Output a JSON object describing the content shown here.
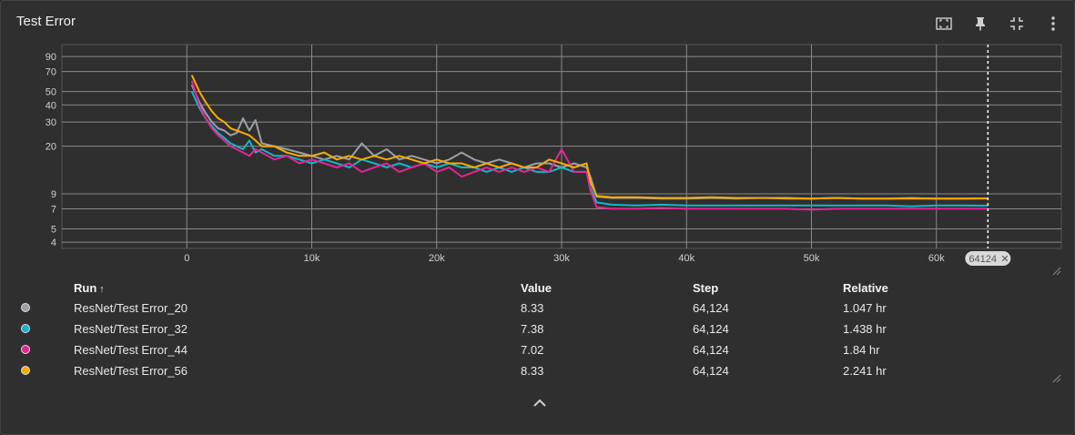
{
  "card": {
    "title": "Test Error"
  },
  "toolbar": [
    {
      "name": "fit-to-data-icon"
    },
    {
      "name": "pin-icon"
    },
    {
      "name": "collapse-card-icon"
    },
    {
      "name": "more-vert-icon"
    }
  ],
  "colors": {
    "background": "#2f2f2f",
    "grid": "#8a8a8a",
    "axis_text": "#d0d0d0"
  },
  "step_marker": {
    "step": 64124,
    "label": "64124"
  },
  "chart_data": {
    "type": "line",
    "title": "Test Error",
    "xlabel": "",
    "ylabel": "",
    "x_ticks": [
      0,
      10000,
      20000,
      30000,
      40000,
      50000,
      60000
    ],
    "x_tick_labels": [
      "0",
      "10k",
      "20k",
      "30k",
      "40k",
      "50k",
      "60k"
    ],
    "y_ticks": [
      4,
      5,
      7,
      9,
      20,
      30,
      40,
      50,
      70,
      90
    ],
    "y_tick_labels": [
      "4",
      "5",
      "7",
      "9",
      "20",
      "30",
      "40",
      "50",
      "70",
      "90"
    ],
    "y_scale": "log",
    "xlim": [
      -10000,
      70000
    ],
    "ylim": [
      3.6,
      110
    ],
    "grid": true,
    "series": [
      {
        "name": "ResNet/Test Error_20",
        "color": "#9aa0a6",
        "points": [
          [
            400,
            56
          ],
          [
            1000,
            42
          ],
          [
            1500,
            35
          ],
          [
            2000,
            30
          ],
          [
            2500,
            27
          ],
          [
            3000,
            26
          ],
          [
            3500,
            24
          ],
          [
            4000,
            25
          ],
          [
            4500,
            32
          ],
          [
            5000,
            26
          ],
          [
            5500,
            31
          ],
          [
            6000,
            21
          ],
          [
            7000,
            20
          ],
          [
            8000,
            19
          ],
          [
            9000,
            18
          ],
          [
            10000,
            17
          ],
          [
            11000,
            16
          ],
          [
            12000,
            17
          ],
          [
            13000,
            16
          ],
          [
            14000,
            21
          ],
          [
            15000,
            17
          ],
          [
            16000,
            19
          ],
          [
            17000,
            16
          ],
          [
            18000,
            17
          ],
          [
            19000,
            16
          ],
          [
            20000,
            15
          ],
          [
            21000,
            16
          ],
          [
            22000,
            18
          ],
          [
            23000,
            16
          ],
          [
            24000,
            15
          ],
          [
            25000,
            16
          ],
          [
            26000,
            15
          ],
          [
            27000,
            14
          ],
          [
            28000,
            15
          ],
          [
            29000,
            15
          ],
          [
            30000,
            14
          ],
          [
            31000,
            15
          ],
          [
            32000,
            14
          ],
          [
            32300,
            12
          ],
          [
            32800,
            8.6
          ],
          [
            34000,
            8.4
          ],
          [
            36000,
            8.4
          ],
          [
            38000,
            8.3
          ],
          [
            40000,
            8.3
          ],
          [
            42000,
            8.4
          ],
          [
            44000,
            8.3
          ],
          [
            46000,
            8.4
          ],
          [
            48000,
            8.3
          ],
          [
            50000,
            8.3
          ],
          [
            52000,
            8.4
          ],
          [
            54000,
            8.3
          ],
          [
            56000,
            8.3
          ],
          [
            58000,
            8.4
          ],
          [
            60000,
            8.3
          ],
          [
            62000,
            8.3
          ],
          [
            64124,
            8.33
          ]
        ]
      },
      {
        "name": "ResNet/Test Error_32",
        "color": "#12b5cb",
        "points": [
          [
            400,
            50
          ],
          [
            1000,
            38
          ],
          [
            1500,
            32
          ],
          [
            2000,
            28
          ],
          [
            2500,
            25
          ],
          [
            3000,
            23
          ],
          [
            3500,
            21
          ],
          [
            4000,
            20
          ],
          [
            4500,
            19
          ],
          [
            5000,
            22
          ],
          [
            5500,
            18
          ],
          [
            6000,
            19
          ],
          [
            7000,
            17
          ],
          [
            8000,
            17
          ],
          [
            9000,
            16
          ],
          [
            10000,
            15
          ],
          [
            11000,
            16
          ],
          [
            12000,
            15
          ],
          [
            13000,
            14
          ],
          [
            14000,
            16
          ],
          [
            15000,
            15
          ],
          [
            16000,
            14
          ],
          [
            17000,
            15
          ],
          [
            18000,
            14
          ],
          [
            19000,
            15
          ],
          [
            20000,
            14
          ],
          [
            21000,
            15
          ],
          [
            22000,
            14
          ],
          [
            23000,
            14
          ],
          [
            24000,
            13
          ],
          [
            25000,
            14
          ],
          [
            26000,
            13
          ],
          [
            27000,
            14
          ],
          [
            28000,
            13
          ],
          [
            29000,
            13
          ],
          [
            30000,
            14
          ],
          [
            31000,
            13
          ],
          [
            32000,
            13
          ],
          [
            32300,
            10
          ],
          [
            32800,
            7.8
          ],
          [
            34000,
            7.5
          ],
          [
            36000,
            7.4
          ],
          [
            38000,
            7.5
          ],
          [
            40000,
            7.4
          ],
          [
            42000,
            7.4
          ],
          [
            44000,
            7.4
          ],
          [
            46000,
            7.4
          ],
          [
            48000,
            7.4
          ],
          [
            50000,
            7.4
          ],
          [
            52000,
            7.4
          ],
          [
            54000,
            7.4
          ],
          [
            56000,
            7.4
          ],
          [
            58000,
            7.3
          ],
          [
            60000,
            7.4
          ],
          [
            62000,
            7.4
          ],
          [
            64124,
            7.38
          ]
        ]
      },
      {
        "name": "ResNet/Test Error_44",
        "color": "#e52592",
        "points": [
          [
            400,
            60
          ],
          [
            1000,
            40
          ],
          [
            1500,
            32
          ],
          [
            2000,
            27
          ],
          [
            2500,
            24
          ],
          [
            3000,
            22
          ],
          [
            3500,
            20
          ],
          [
            4000,
            19
          ],
          [
            4500,
            18
          ],
          [
            5000,
            17
          ],
          [
            5500,
            19
          ],
          [
            6000,
            18
          ],
          [
            7000,
            16
          ],
          [
            8000,
            17
          ],
          [
            9000,
            15
          ],
          [
            10000,
            16
          ],
          [
            11000,
            15
          ],
          [
            12000,
            14
          ],
          [
            13000,
            15
          ],
          [
            14000,
            13
          ],
          [
            15000,
            14
          ],
          [
            16000,
            15
          ],
          [
            17000,
            13
          ],
          [
            18000,
            14
          ],
          [
            19000,
            15
          ],
          [
            20000,
            13
          ],
          [
            21000,
            14
          ],
          [
            22000,
            12
          ],
          [
            23000,
            13
          ],
          [
            24000,
            14
          ],
          [
            25000,
            13
          ],
          [
            26000,
            14
          ],
          [
            27000,
            13
          ],
          [
            28000,
            14
          ],
          [
            29000,
            13
          ],
          [
            30000,
            19
          ],
          [
            31000,
            13
          ],
          [
            32000,
            13
          ],
          [
            32300,
            9.5
          ],
          [
            32800,
            7.2
          ],
          [
            34000,
            7.0
          ],
          [
            36000,
            7.0
          ],
          [
            38000,
            7.1
          ],
          [
            40000,
            7.0
          ],
          [
            42000,
            7.0
          ],
          [
            44000,
            7.0
          ],
          [
            46000,
            7.0
          ],
          [
            48000,
            7.0
          ],
          [
            50000,
            6.9
          ],
          [
            52000,
            7.0
          ],
          [
            54000,
            7.0
          ],
          [
            56000,
            7.0
          ],
          [
            58000,
            7.0
          ],
          [
            60000,
            7.0
          ],
          [
            62000,
            7.0
          ],
          [
            64124,
            7.02
          ]
        ]
      },
      {
        "name": "ResNet/Test Error_56",
        "color": "#f9ab00",
        "points": [
          [
            400,
            66
          ],
          [
            1000,
            50
          ],
          [
            1500,
            42
          ],
          [
            2000,
            36
          ],
          [
            2500,
            32
          ],
          [
            3000,
            30
          ],
          [
            3500,
            27
          ],
          [
            4000,
            26
          ],
          [
            4500,
            25
          ],
          [
            5000,
            24
          ],
          [
            5500,
            22
          ],
          [
            6000,
            20
          ],
          [
            7000,
            20
          ],
          [
            8000,
            18
          ],
          [
            9000,
            17
          ],
          [
            10000,
            17
          ],
          [
            11000,
            18
          ],
          [
            12000,
            16
          ],
          [
            13000,
            17
          ],
          [
            14000,
            16
          ],
          [
            15000,
            17
          ],
          [
            16000,
            16
          ],
          [
            17000,
            17
          ],
          [
            18000,
            16
          ],
          [
            19000,
            15
          ],
          [
            20000,
            16
          ],
          [
            21000,
            15
          ],
          [
            22000,
            15
          ],
          [
            23000,
            14
          ],
          [
            24000,
            15
          ],
          [
            25000,
            14
          ],
          [
            26000,
            15
          ],
          [
            27000,
            14
          ],
          [
            28000,
            14
          ],
          [
            29000,
            16
          ],
          [
            30000,
            15
          ],
          [
            31000,
            14
          ],
          [
            32000,
            15
          ],
          [
            32300,
            11
          ],
          [
            32800,
            8.7
          ],
          [
            34000,
            8.5
          ],
          [
            36000,
            8.5
          ],
          [
            38000,
            8.4
          ],
          [
            40000,
            8.4
          ],
          [
            42000,
            8.5
          ],
          [
            44000,
            8.4
          ],
          [
            46000,
            8.4
          ],
          [
            48000,
            8.4
          ],
          [
            50000,
            8.3
          ],
          [
            52000,
            8.4
          ],
          [
            54000,
            8.3
          ],
          [
            56000,
            8.3
          ],
          [
            58000,
            8.3
          ],
          [
            60000,
            8.3
          ],
          [
            62000,
            8.3
          ],
          [
            64124,
            8.33
          ]
        ]
      }
    ]
  },
  "table": {
    "headers": {
      "run": "Run",
      "value": "Value",
      "step": "Step",
      "relative": "Relative"
    },
    "rows": [
      {
        "run": "ResNet/Test Error_20",
        "value": "8.33",
        "step": "64,124",
        "relative": "1.047 hr",
        "color": "#9aa0a6"
      },
      {
        "run": "ResNet/Test Error_32",
        "value": "7.38",
        "step": "64,124",
        "relative": "1.438 hr",
        "color": "#12b5cb"
      },
      {
        "run": "ResNet/Test Error_44",
        "value": "7.02",
        "step": "64,124",
        "relative": "1.84 hr",
        "color": "#e52592"
      },
      {
        "run": "ResNet/Test Error_56",
        "value": "8.33",
        "step": "64,124",
        "relative": "2.241 hr",
        "color": "#f9ab00"
      }
    ]
  }
}
